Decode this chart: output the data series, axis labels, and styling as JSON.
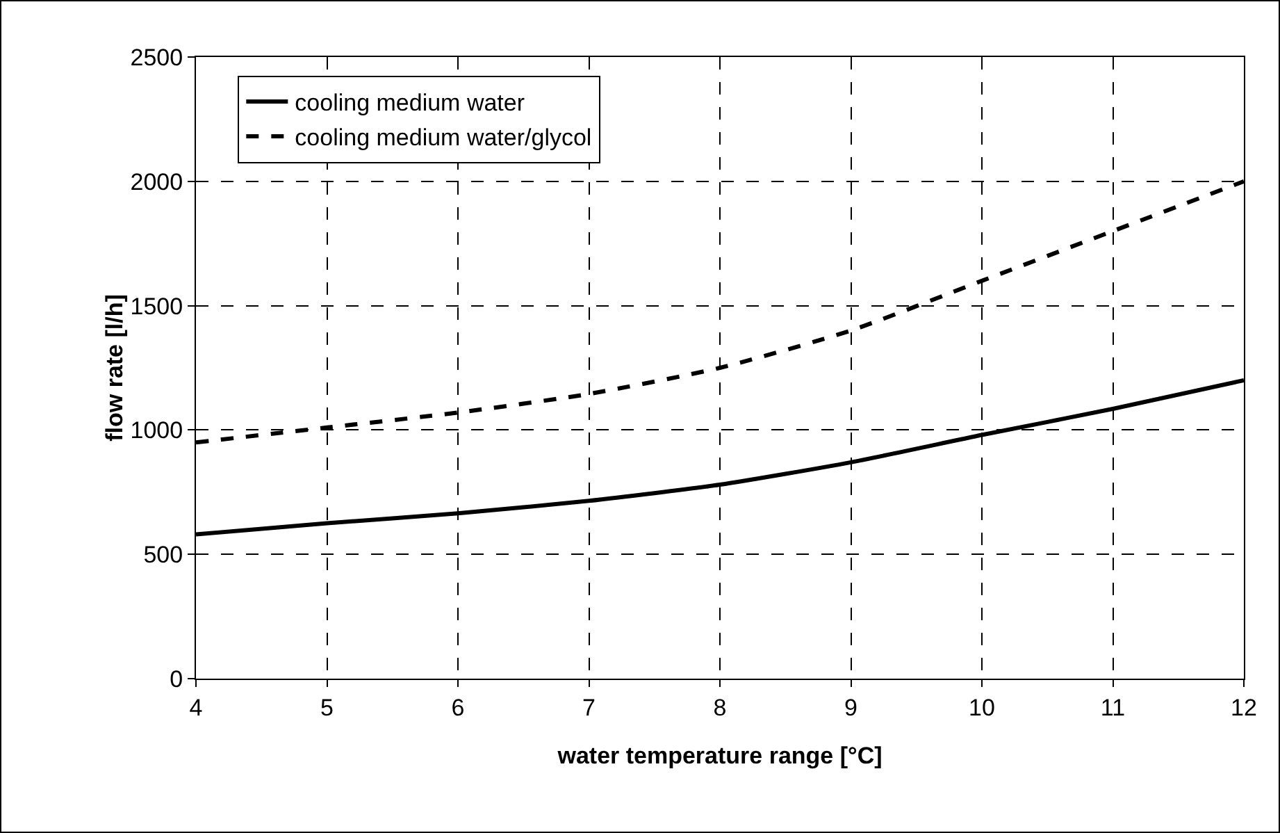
{
  "chart_data": {
    "type": "line",
    "xlabel": "water temperature range [°C]",
    "ylabel": "flow rate [l/h]",
    "x": [
      4,
      5,
      6,
      7,
      8,
      9,
      10,
      11,
      12
    ],
    "series": [
      {
        "name": "cooling medium water",
        "color": "#000000",
        "line_style": "solid",
        "values": [
          580,
          625,
          665,
          715,
          780,
          870,
          980,
          1085,
          1200
        ]
      },
      {
        "name": "cooling medium water/glycol",
        "color": "#000000",
        "line_style": "dashed",
        "values": [
          950,
          1010,
          1070,
          1145,
          1250,
          1400,
          1600,
          1800,
          2000
        ]
      }
    ],
    "xlim": [
      4,
      12
    ],
    "xticks": [
      4,
      5,
      6,
      7,
      8,
      9,
      10,
      11,
      12
    ],
    "ylim": [
      0,
      2500
    ],
    "yticks": [
      0,
      500,
      1000,
      1500,
      2000,
      2500
    ],
    "grid": true,
    "legend": "top left",
    "marker": "none"
  }
}
